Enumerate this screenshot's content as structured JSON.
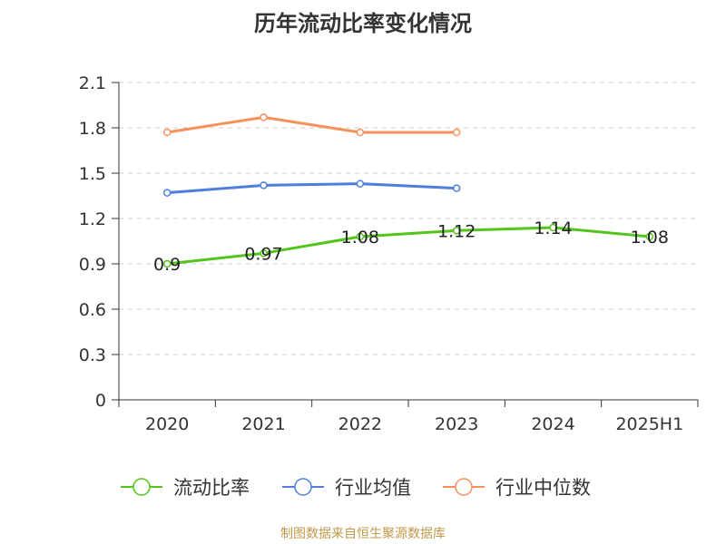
{
  "chart_data": {
    "type": "line",
    "title": "历年流动比率变化情况",
    "categories": [
      "2020",
      "2021",
      "2022",
      "2023",
      "2024",
      "2025H1"
    ],
    "ylim": [
      0,
      2.1
    ],
    "yticks": [
      "0",
      "0.3",
      "0.6",
      "0.9",
      "1.2",
      "1.5",
      "1.8",
      "2.1"
    ],
    "grid": true,
    "legend_position": "bottom",
    "series": [
      {
        "name": "流动比率",
        "color": "#52c41a",
        "values": [
          0.9,
          0.97,
          1.08,
          1.12,
          1.14,
          1.08
        ],
        "data_labels": [
          "0.9",
          "0.97",
          "1.08",
          "1.12",
          "1.14",
          "1.08"
        ]
      },
      {
        "name": "行业均值",
        "color": "#4e7fdc",
        "values": [
          1.37,
          1.42,
          1.43,
          1.4,
          null,
          null
        ]
      },
      {
        "name": "行业中位数",
        "color": "#f5915a",
        "values": [
          1.77,
          1.87,
          1.77,
          1.77,
          null,
          null
        ]
      }
    ]
  },
  "source_text": "制图数据来自恒生聚源数据库"
}
